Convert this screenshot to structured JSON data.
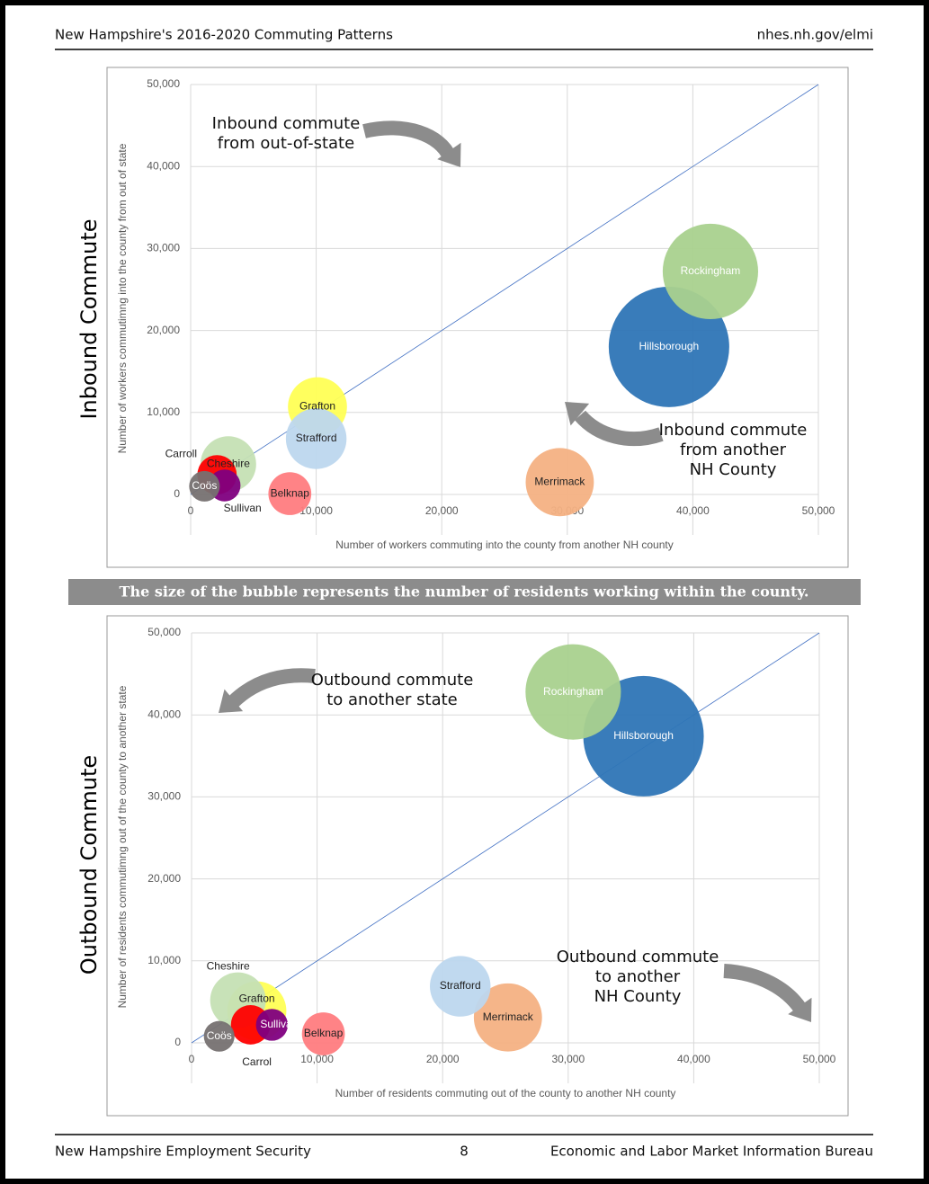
{
  "header": {
    "title": "New Hampshire's 2016-2020 Commuting Patterns",
    "url": "nhes.nh.gov/elmi"
  },
  "note": "The size of the bubble represents the number of residents working within the county.",
  "footer": {
    "left": "New Hampshire Employment Security",
    "page": 8,
    "right": "Economic and Labor Market Information Bureau"
  },
  "chart_data": [
    {
      "type": "bubble",
      "side_title": "Inbound Commute",
      "xlabel": "Number of workers commuting into the county from another NH county",
      "ylabel": "Number of workers commutimng into the county from out of state",
      "annotations": [
        [
          "Inbound commute",
          "from out-of-state"
        ],
        [
          "Inbound commute",
          "from another",
          "NH County"
        ]
      ],
      "xlim": [
        0,
        50000
      ],
      "ylim": [
        0,
        50000
      ],
      "xticks": [
        0,
        {
          "value": 10000,
          "label": "10,000"
        },
        {
          "value": 20000,
          "label": "20,000"
        },
        {
          "value": 30000,
          "label": "30,000"
        },
        {
          "value": 40000,
          "label": "40,000"
        },
        {
          "value": 50000,
          "label": "50,000"
        }
      ],
      "yticks": [
        0,
        {
          "value": 10000,
          "label": "10,000"
        },
        {
          "value": 20000,
          "label": "20,000"
        },
        {
          "value": 30000,
          "label": "30,000"
        },
        {
          "value": 40000,
          "label": "40,000"
        },
        {
          "value": 50000,
          "label": "50,000"
        }
      ],
      "grid": true,
      "series": [
        {
          "name": "Hillsborough",
          "color": "#2e75b6",
          "x": [
            38100
          ],
          "values": [
            18000
          ],
          "sizes": [
            150000
          ]
        },
        {
          "name": "Rockingham",
          "color": "#a9d18e",
          "x": [
            41400
          ],
          "values": [
            27200
          ],
          "sizes": [
            94000
          ]
        },
        {
          "name": "Merrimack",
          "color": "#f4b183",
          "x": [
            29400
          ],
          "values": [
            1500
          ],
          "sizes": [
            48000
          ]
        },
        {
          "name": "Grafton",
          "color": "#ffff55",
          "x": [
            10100
          ],
          "values": [
            10700
          ],
          "sizes": [
            36000
          ]
        },
        {
          "name": "Strafford",
          "color": "#bdd7ee",
          "x": [
            10000
          ],
          "values": [
            6800
          ],
          "sizes": [
            38000
          ]
        },
        {
          "name": "Cheshire",
          "color": "#c5e0b4",
          "x": [
            3000
          ],
          "values": [
            3700
          ],
          "sizes": [
            32000
          ]
        },
        {
          "name": "Belknap",
          "color": "#ff7c80",
          "x": [
            7900
          ],
          "values": [
            100
          ],
          "sizes": [
            19000
          ]
        },
        {
          "name": "Carroll",
          "color": "#ff0000",
          "x": [
            2100
          ],
          "values": [
            2400
          ],
          "sizes": [
            16000
          ]
        },
        {
          "name": "Sullivan",
          "color": "#7f007f",
          "x": [
            2700
          ],
          "values": [
            1100
          ],
          "sizes": [
            10500
          ]
        },
        {
          "name": "Coös",
          "color": "#767171",
          "x": [
            1100
          ],
          "values": [
            1000
          ],
          "sizes": [
            9700
          ]
        }
      ]
    },
    {
      "type": "bubble",
      "side_title": "Outbound Commute",
      "xlabel": "Number of residents commuting out of the county to another NH county",
      "ylabel": "Number of residents commutimng out of the county to another state",
      "annotations": [
        [
          "Outbound commute",
          "to another state"
        ],
        [
          "Outbound commute",
          "to another",
          "NH County"
        ]
      ],
      "xlim": [
        0,
        50000
      ],
      "ylim": [
        0,
        50000
      ],
      "xticks": [
        0,
        {
          "value": 10000,
          "label": "10,000"
        },
        {
          "value": 20000,
          "label": "20,000"
        },
        {
          "value": 30000,
          "label": "30,000"
        },
        {
          "value": 40000,
          "label": "40,000"
        },
        {
          "value": 50000,
          "label": "50,000"
        }
      ],
      "yticks": [
        0,
        {
          "value": 10000,
          "label": "10,000"
        },
        {
          "value": 20000,
          "label": "20,000"
        },
        {
          "value": 30000,
          "label": "30,000"
        },
        {
          "value": 40000,
          "label": "40,000"
        },
        {
          "value": 50000,
          "label": "50,000"
        }
      ],
      "grid": true,
      "series": [
        {
          "name": "Hillsborough",
          "color": "#2e75b6",
          "x": [
            36000
          ],
          "values": [
            37400
          ],
          "sizes": [
            150000
          ]
        },
        {
          "name": "Rockingham",
          "color": "#a9d18e",
          "x": [
            30400
          ],
          "values": [
            42800
          ],
          "sizes": [
            94000
          ]
        },
        {
          "name": "Merrimack",
          "color": "#f4b183",
          "x": [
            25200
          ],
          "values": [
            3100
          ],
          "sizes": [
            48000
          ]
        },
        {
          "name": "Grafton",
          "color": "#ffff55",
          "x": [
            5200
          ],
          "values": [
            3900
          ],
          "sizes": [
            36000
          ]
        },
        {
          "name": "Strafford",
          "color": "#bdd7ee",
          "x": [
            21400
          ],
          "values": [
            6900
          ],
          "sizes": [
            38000
          ]
        },
        {
          "name": "Cheshire",
          "color": "#c5e0b4",
          "x": [
            3700
          ],
          "values": [
            5200
          ],
          "sizes": [
            32000
          ]
        },
        {
          "name": "Belknap",
          "color": "#ff7c80",
          "x": [
            10500
          ],
          "values": [
            1100
          ],
          "sizes": [
            19000
          ]
        },
        {
          "name": "Carrol",
          "color": "#ff0000",
          "x": [
            4700
          ],
          "values": [
            2200
          ],
          "sizes": [
            16000
          ]
        },
        {
          "name": "Sullivan",
          "color": "#7f007f",
          "x": [
            6400
          ],
          "values": [
            2200
          ],
          "sizes": [
            10500
          ]
        },
        {
          "name": "Coös",
          "color": "#767171",
          "x": [
            2200
          ],
          "values": [
            800
          ],
          "sizes": [
            9700
          ]
        }
      ]
    }
  ]
}
